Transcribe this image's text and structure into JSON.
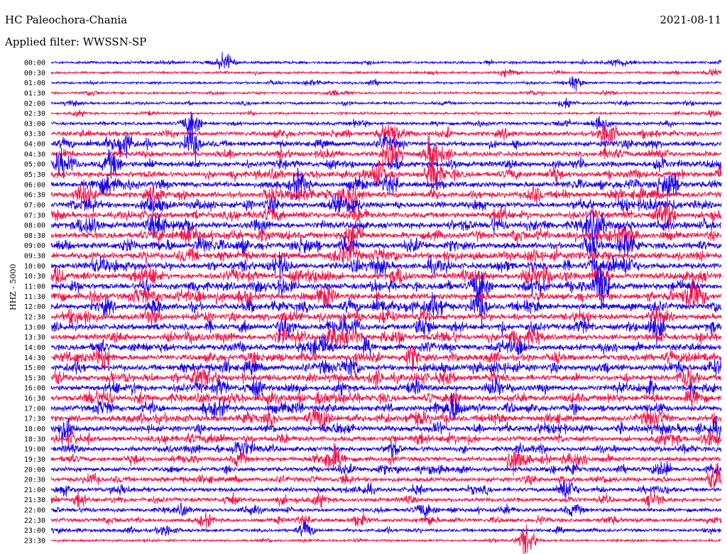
{
  "header": {
    "station": "HC Paleochora-Chania",
    "filter": "Applied filter: WWSSN-SP",
    "date": "2021-08-11"
  },
  "colors": {
    "blue": "#1a00e6",
    "red": "#f0144a"
  },
  "chart_data": {
    "type": "line",
    "title": "HC Paleochora-Chania",
    "subtitle": "Applied filter: WWSSN-SP",
    "ylabel": "HHZ - 5000",
    "row_colors": [
      "blue",
      "red"
    ],
    "rows": [
      {
        "time": "00:00",
        "activity": 0.25,
        "events": [
          {
            "pos": 0.26,
            "amp": 1.2
          },
          {
            "pos": 0.85,
            "amp": 0.5
          }
        ]
      },
      {
        "time": "00:30",
        "activity": 0.2,
        "events": [
          {
            "pos": 0.68,
            "amp": 0.5
          },
          {
            "pos": 0.99,
            "amp": 0.5
          }
        ]
      },
      {
        "time": "01:00",
        "activity": 0.2,
        "events": [
          {
            "pos": 0.78,
            "amp": 1.0
          },
          {
            "pos": 0.48,
            "amp": 0.4
          }
        ]
      },
      {
        "time": "01:30",
        "activity": 0.2,
        "events": [
          {
            "pos": 0.06,
            "amp": 0.4
          },
          {
            "pos": 0.42,
            "amp": 0.4
          }
        ]
      },
      {
        "time": "02:00",
        "activity": 0.25,
        "events": [
          {
            "pos": 0.77,
            "amp": 0.7
          },
          {
            "pos": 0.03,
            "amp": 0.4
          }
        ]
      },
      {
        "time": "02:30",
        "activity": 0.2,
        "events": [
          {
            "pos": 0.04,
            "amp": 0.4
          },
          {
            "pos": 0.99,
            "amp": 0.4
          }
        ]
      },
      {
        "time": "03:00",
        "activity": 0.35,
        "events": [
          {
            "pos": 0.21,
            "amp": 2.0
          },
          {
            "pos": 0.82,
            "amp": 0.9
          }
        ]
      },
      {
        "time": "03:30",
        "activity": 0.55,
        "events": [
          {
            "pos": 0.83,
            "amp": 2.2
          },
          {
            "pos": 0.51,
            "amp": 1.4
          }
        ]
      },
      {
        "time": "04:00",
        "activity": 0.6,
        "events": [
          {
            "pos": 0.11,
            "amp": 2.0
          },
          {
            "pos": 0.21,
            "amp": 2.2
          }
        ]
      },
      {
        "time": "04:30",
        "activity": 0.6,
        "events": [
          {
            "pos": 0.51,
            "amp": 2.2
          },
          {
            "pos": 0.57,
            "amp": 2.5
          }
        ]
      },
      {
        "time": "05:00",
        "activity": 0.7,
        "events": [
          {
            "pos": 0.02,
            "amp": 1.6
          },
          {
            "pos": 0.09,
            "amp": 1.8
          }
        ]
      },
      {
        "time": "05:30",
        "activity": 0.7,
        "events": [
          {
            "pos": 0.57,
            "amp": 2.4
          },
          {
            "pos": 0.49,
            "amp": 2.0
          }
        ]
      },
      {
        "time": "06:00",
        "activity": 0.75,
        "events": [
          {
            "pos": 0.37,
            "amp": 2.0
          },
          {
            "pos": 0.92,
            "amp": 1.8
          }
        ]
      },
      {
        "time": "06:30",
        "activity": 0.75,
        "events": [
          {
            "pos": 0.05,
            "amp": 1.6
          },
          {
            "pos": 0.45,
            "amp": 1.8
          }
        ]
      },
      {
        "time": "07:00",
        "activity": 0.75,
        "events": [
          {
            "pos": 0.45,
            "amp": 1.2
          },
          {
            "pos": 0.33,
            "amp": 1.0
          }
        ]
      },
      {
        "time": "07:30",
        "activity": 0.75,
        "events": [
          {
            "pos": 0.67,
            "amp": 1.2
          },
          {
            "pos": 0.92,
            "amp": 1.2
          }
        ]
      },
      {
        "time": "08:00",
        "activity": 0.8,
        "events": [
          {
            "pos": 0.16,
            "amp": 1.4
          },
          {
            "pos": 0.81,
            "amp": 1.4
          }
        ]
      },
      {
        "time": "08:30",
        "activity": 0.8,
        "events": [
          {
            "pos": 0.45,
            "amp": 1.2
          },
          {
            "pos": 0.86,
            "amp": 1.6
          }
        ]
      },
      {
        "time": "09:00",
        "activity": 0.8,
        "events": [
          {
            "pos": 0.86,
            "amp": 2.0
          },
          {
            "pos": 0.38,
            "amp": 1.0
          }
        ]
      },
      {
        "time": "09:30",
        "activity": 0.8,
        "events": [
          {
            "pos": 0.72,
            "amp": 1.0
          },
          {
            "pos": 0.2,
            "amp": 0.8
          }
        ]
      },
      {
        "time": "10:00",
        "activity": 0.8,
        "events": [
          {
            "pos": 0.34,
            "amp": 1.2
          },
          {
            "pos": 0.86,
            "amp": 1.4
          }
        ]
      },
      {
        "time": "10:30",
        "activity": 0.8,
        "events": [
          {
            "pos": 0.52,
            "amp": 1.2
          },
          {
            "pos": 0.82,
            "amp": 1.4
          }
        ]
      },
      {
        "time": "11:00",
        "activity": 0.8,
        "events": [
          {
            "pos": 0.64,
            "amp": 2.4
          },
          {
            "pos": 0.82,
            "amp": 2.0
          }
        ]
      },
      {
        "time": "11:30",
        "activity": 0.8,
        "events": [
          {
            "pos": 0.41,
            "amp": 1.6
          },
          {
            "pos": 0.96,
            "amp": 1.8
          }
        ]
      },
      {
        "time": "12:00",
        "activity": 0.8,
        "events": [
          {
            "pos": 0.64,
            "amp": 1.8
          },
          {
            "pos": 0.08,
            "amp": 1.0
          }
        ]
      },
      {
        "time": "12:30",
        "activity": 0.75,
        "events": [
          {
            "pos": 0.15,
            "amp": 1.0
          },
          {
            "pos": 0.5,
            "amp": 1.0
          }
        ]
      },
      {
        "time": "13:00",
        "activity": 0.75,
        "events": [
          {
            "pos": 0.35,
            "amp": 1.4
          },
          {
            "pos": 0.9,
            "amp": 1.4
          }
        ]
      },
      {
        "time": "13:30",
        "activity": 0.75,
        "events": [
          {
            "pos": 0.72,
            "amp": 1.0
          },
          {
            "pos": 0.42,
            "amp": 0.8
          }
        ]
      },
      {
        "time": "14:00",
        "activity": 0.75,
        "events": [
          {
            "pos": 0.41,
            "amp": 1.0
          },
          {
            "pos": 0.7,
            "amp": 0.9
          }
        ]
      },
      {
        "time": "14:30",
        "activity": 0.75,
        "events": [
          {
            "pos": 0.08,
            "amp": 0.9
          },
          {
            "pos": 0.54,
            "amp": 0.9
          }
        ]
      },
      {
        "time": "15:00",
        "activity": 0.75,
        "events": [
          {
            "pos": 0.45,
            "amp": 1.0
          },
          {
            "pos": 0.99,
            "amp": 1.0
          }
        ]
      },
      {
        "time": "15:30",
        "activity": 0.75,
        "events": [
          {
            "pos": 0.22,
            "amp": 1.2
          },
          {
            "pos": 0.95,
            "amp": 1.8
          }
        ]
      },
      {
        "time": "16:00",
        "activity": 0.75,
        "events": [
          {
            "pos": 0.66,
            "amp": 1.0
          },
          {
            "pos": 0.3,
            "amp": 0.8
          }
        ]
      },
      {
        "time": "16:30",
        "activity": 0.75,
        "events": [
          {
            "pos": 0.6,
            "amp": 1.0
          },
          {
            "pos": 0.96,
            "amp": 1.4
          }
        ]
      },
      {
        "time": "17:00",
        "activity": 0.75,
        "events": [
          {
            "pos": 0.6,
            "amp": 1.2
          },
          {
            "pos": 0.08,
            "amp": 0.8
          }
        ]
      },
      {
        "time": "17:30",
        "activity": 0.75,
        "events": [
          {
            "pos": 0.4,
            "amp": 0.9
          },
          {
            "pos": 0.9,
            "amp": 0.9
          }
        ]
      },
      {
        "time": "18:00",
        "activity": 0.7,
        "events": [
          {
            "pos": 0.02,
            "amp": 1.0
          },
          {
            "pos": 0.99,
            "amp": 1.0
          }
        ]
      },
      {
        "time": "18:30",
        "activity": 0.65,
        "events": [
          {
            "pos": 0.55,
            "amp": 0.8
          },
          {
            "pos": 0.98,
            "amp": 0.9
          }
        ]
      },
      {
        "time": "19:00",
        "activity": 0.6,
        "events": [
          {
            "pos": 0.28,
            "amp": 1.0
          },
          {
            "pos": 0.51,
            "amp": 0.9
          }
        ]
      },
      {
        "time": "19:30",
        "activity": 0.6,
        "events": [
          {
            "pos": 0.42,
            "amp": 1.6
          },
          {
            "pos": 0.69,
            "amp": 1.8
          }
        ]
      },
      {
        "time": "20:00",
        "activity": 0.55,
        "events": [
          {
            "pos": 0.91,
            "amp": 0.8
          },
          {
            "pos": 0.99,
            "amp": 0.8
          }
        ]
      },
      {
        "time": "20:30",
        "activity": 0.55,
        "events": [
          {
            "pos": 0.99,
            "amp": 1.0
          },
          {
            "pos": 0.06,
            "amp": 0.7
          }
        ]
      },
      {
        "time": "21:00",
        "activity": 0.5,
        "events": [
          {
            "pos": 0.77,
            "amp": 1.8
          },
          {
            "pos": 0.02,
            "amp": 0.6
          }
        ]
      },
      {
        "time": "21:30",
        "activity": 0.5,
        "events": [
          {
            "pos": 0.4,
            "amp": 0.8
          },
          {
            "pos": 0.9,
            "amp": 0.8
          }
        ]
      },
      {
        "time": "22:00",
        "activity": 0.45,
        "events": [
          {
            "pos": 0.3,
            "amp": 0.8
          },
          {
            "pos": 0.78,
            "amp": 0.8
          }
        ]
      },
      {
        "time": "22:30",
        "activity": 0.45,
        "events": [
          {
            "pos": 0.23,
            "amp": 0.8
          },
          {
            "pos": 0.46,
            "amp": 0.8
          }
        ]
      },
      {
        "time": "23:00",
        "activity": 0.35,
        "events": [
          {
            "pos": 0.17,
            "amp": 0.8
          },
          {
            "pos": 0.38,
            "amp": 0.9
          }
        ]
      },
      {
        "time": "23:30",
        "activity": 0.2,
        "events": [
          {
            "pos": 0.71,
            "amp": 2.2
          }
        ]
      }
    ]
  }
}
